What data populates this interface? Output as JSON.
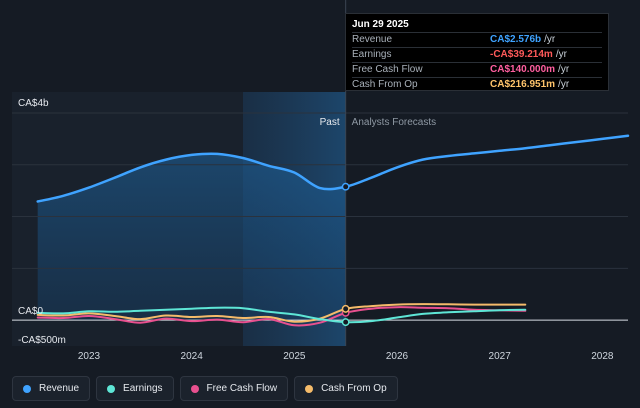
{
  "tooltip": {
    "date": "Jun 29 2025",
    "rows": [
      {
        "name": "Revenue",
        "value": "CA$2.576b",
        "unit": "/yr",
        "color": "#3fa3ff"
      },
      {
        "name": "Earnings",
        "value": "-CA$39.214m",
        "unit": "/yr",
        "color": "#ff5a5a"
      },
      {
        "name": "Free Cash Flow",
        "value": "CA$140.000m",
        "unit": "/yr",
        "color": "#ff5fa0"
      },
      {
        "name": "Cash From Op",
        "value": "CA$216.951m",
        "unit": "/yr",
        "color": "#ffc46b"
      }
    ]
  },
  "legend": [
    {
      "label": "Revenue",
      "color": "#3fa3ff"
    },
    {
      "label": "Earnings",
      "color": "#5ee6d6"
    },
    {
      "label": "Free Cash Flow",
      "color": "#e8508f"
    },
    {
      "label": "Cash From Op",
      "color": "#f5bb6a"
    }
  ],
  "chart_data": {
    "type": "line",
    "xlim": [
      2022.25,
      2028.25
    ],
    "ylim": [
      -500,
      4000
    ],
    "x_ticks": [
      2023,
      2024,
      2025,
      2026,
      2027,
      2028
    ],
    "y_tick_labels": [
      {
        "value": 4000,
        "label": "CA$4b"
      },
      {
        "value": 0,
        "label": "CA$0"
      },
      {
        "value": -500,
        "label": "-CA$500m"
      }
    ],
    "divider_x": 2025.5,
    "highlight_range": [
      2024.5,
      2025.5
    ],
    "regions": {
      "past": "Past",
      "forecast": "Analysts Forecasts"
    },
    "marker_x": 2025.5,
    "series": [
      {
        "name": "Revenue",
        "color": "#3fa3ff",
        "area": true,
        "x": [
          2022.5,
          2022.75,
          2023.0,
          2023.25,
          2023.5,
          2023.75,
          2024.0,
          2024.25,
          2024.5,
          2024.75,
          2025.0,
          2025.25,
          2025.5,
          2025.75,
          2026.0,
          2026.25,
          2026.5,
          2026.75,
          2027.0,
          2027.25,
          2027.5,
          2027.75,
          2028.0,
          2028.25
        ],
        "y": [
          2290,
          2400,
          2560,
          2750,
          2950,
          3100,
          3190,
          3210,
          3130,
          2980,
          2850,
          2550,
          2576,
          2750,
          2950,
          3100,
          3170,
          3220,
          3270,
          3320,
          3380,
          3440,
          3500,
          3560
        ]
      },
      {
        "name": "Earnings",
        "color": "#5ee6d6",
        "x": [
          2022.5,
          2022.75,
          2023.0,
          2023.25,
          2023.5,
          2023.75,
          2024.0,
          2024.25,
          2024.5,
          2024.75,
          2025.0,
          2025.25,
          2025.5,
          2025.75,
          2026.0,
          2026.25,
          2026.5,
          2026.75,
          2027.0,
          2027.25
        ],
        "y": [
          140,
          130,
          170,
          160,
          180,
          200,
          220,
          240,
          230,
          160,
          110,
          20,
          -39,
          -20,
          50,
          120,
          150,
          170,
          190,
          200
        ]
      },
      {
        "name": "Free Cash Flow",
        "color": "#e8508f",
        "x": [
          2022.5,
          2022.75,
          2023.0,
          2023.25,
          2023.5,
          2023.75,
          2024.0,
          2024.25,
          2024.5,
          2024.75,
          2025.0,
          2025.25,
          2025.5,
          2025.75,
          2026.0,
          2026.25,
          2026.5,
          2026.75,
          2027.0,
          2027.25
        ],
        "y": [
          50,
          40,
          80,
          20,
          -50,
          30,
          -20,
          10,
          -40,
          20,
          -100,
          -50,
          140,
          220,
          250,
          240,
          230,
          200,
          190,
          180
        ]
      },
      {
        "name": "Cash From Op",
        "color": "#f5bb6a",
        "x": [
          2022.5,
          2022.75,
          2023.0,
          2023.25,
          2023.5,
          2023.75,
          2024.0,
          2024.25,
          2024.5,
          2024.75,
          2025.0,
          2025.25,
          2025.5,
          2025.75,
          2026.0,
          2026.25,
          2026.5,
          2026.75,
          2027.0,
          2027.25
        ],
        "y": [
          100,
          90,
          130,
          80,
          20,
          90,
          60,
          80,
          40,
          60,
          -30,
          30,
          217,
          270,
          300,
          310,
          305,
          300,
          300,
          300
        ]
      }
    ]
  }
}
